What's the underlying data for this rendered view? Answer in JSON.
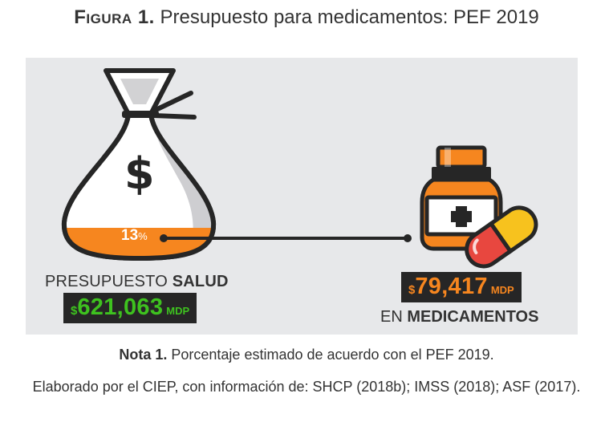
{
  "figure": {
    "label": "Figura 1.",
    "title": "Presupuesto para medicamentos: PEF 2019"
  },
  "health": {
    "label_prefix": "PRESUPUESTO",
    "label_bold": "SALUD",
    "currency": "$",
    "amount": "621,063",
    "unit": "MDP",
    "percent_value": "13",
    "percent_symbol": "%",
    "percent_fraction": 0.13
  },
  "medicines": {
    "currency": "$",
    "amount": "79,417",
    "unit": "MDP",
    "label_prefix": "EN",
    "label_bold": "MEDICAMENTOS"
  },
  "bag_symbol": "$",
  "note": {
    "label": "Nota 1.",
    "text": "Porcentaje estimado de acuerdo con el PEF 2019."
  },
  "source": "Elaborado por el CIEP, con información de: SHCP (2018b); IMSS (2018); ASF (2017).",
  "colors": {
    "panel": "#e7e8ea",
    "orange": "#f6861f",
    "green": "#3ec21f",
    "dark": "#262626",
    "red_pill": "#e8473f",
    "yellow_pill": "#f7c21e"
  },
  "icons": [
    "money-bag-icon",
    "medicine-bottle-icon",
    "pill-capsule-icon"
  ]
}
